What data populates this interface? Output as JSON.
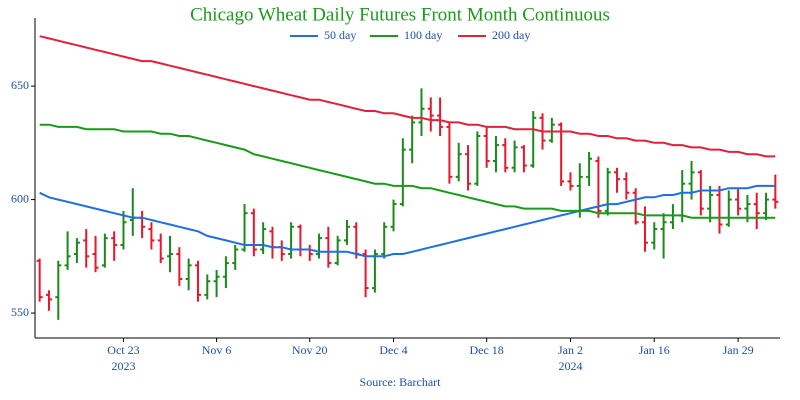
{
  "chart_data": {
    "type": "ohlc",
    "title": "Chicago Wheat Daily Futures Front Month Continuous",
    "source": "Source: Barchart",
    "categories": [
      null,
      null,
      null,
      null,
      null,
      null,
      null,
      null,
      null,
      "Oct 23",
      null,
      null,
      null,
      null,
      null,
      null,
      null,
      null,
      null,
      "Nov 6",
      null,
      null,
      null,
      null,
      null,
      null,
      null,
      null,
      null,
      "Nov 20",
      null,
      null,
      null,
      null,
      null,
      null,
      null,
      null,
      "Dec 4",
      null,
      null,
      null,
      null,
      null,
      null,
      null,
      null,
      null,
      "Dec 18",
      null,
      null,
      null,
      null,
      null,
      null,
      null,
      null,
      "Jan 2",
      null,
      null,
      null,
      null,
      null,
      null,
      null,
      null,
      "Jan 16",
      null,
      null,
      null,
      null,
      null,
      null,
      null,
      null,
      "Jan 29",
      null,
      null,
      null,
      null
    ],
    "category_years": [
      null,
      null,
      null,
      null,
      null,
      null,
      null,
      null,
      null,
      "2023",
      null,
      null,
      null,
      null,
      null,
      null,
      null,
      null,
      null,
      null,
      null,
      null,
      null,
      null,
      null,
      null,
      null,
      null,
      null,
      null,
      null,
      null,
      null,
      null,
      null,
      null,
      null,
      null,
      null,
      null,
      null,
      null,
      null,
      null,
      null,
      null,
      null,
      null,
      null,
      null,
      null,
      null,
      null,
      null,
      null,
      null,
      null,
      "2024",
      null,
      null,
      null,
      null,
      null,
      null,
      null,
      null,
      null,
      null,
      null,
      null,
      null,
      null,
      null,
      null,
      null,
      null,
      null,
      null,
      null,
      null
    ],
    "open": [
      573,
      558,
      557,
      571,
      576,
      582,
      576,
      571,
      583,
      580,
      591,
      592,
      587,
      582,
      575,
      576,
      565,
      571,
      558,
      564,
      566,
      572,
      578,
      594,
      578,
      586,
      579,
      576,
      588,
      578,
      576,
      583,
      572,
      582,
      588,
      576,
      561,
      576,
      588,
      598,
      622,
      634,
      640,
      637,
      632,
      610,
      620,
      607,
      628,
      617,
      624,
      614,
      623,
      615,
      636,
      626,
      633,
      608,
      606,
      610,
      617,
      595,
      612,
      609,
      603,
      590,
      581,
      587,
      590,
      593,
      607,
      612,
      596,
      602,
      589,
      600,
      596,
      598,
      594,
      600
    ],
    "high": [
      574,
      560,
      573,
      586,
      583,
      587,
      584,
      585,
      586,
      595,
      605,
      595,
      590,
      585,
      584,
      579,
      574,
      573,
      567,
      569,
      575,
      580,
      598,
      596,
      590,
      588,
      582,
      590,
      589,
      580,
      585,
      588,
      584,
      591,
      590,
      578,
      578,
      590,
      600,
      627,
      637,
      649,
      645,
      645,
      634,
      625,
      624,
      630,
      632,
      628,
      627,
      626,
      624,
      639,
      638,
      636,
      634,
      612,
      616,
      621,
      619,
      614,
      614,
      612,
      605,
      597,
      590,
      594,
      598,
      613,
      617,
      613,
      606,
      606,
      604,
      605,
      602,
      603,
      603,
      611
    ],
    "low": [
      555,
      551,
      547,
      569,
      572,
      570,
      568,
      570,
      573,
      578,
      584,
      583,
      578,
      572,
      568,
      562,
      560,
      555,
      556,
      557,
      561,
      569,
      577,
      575,
      576,
      574,
      573,
      574,
      575,
      573,
      574,
      570,
      571,
      580,
      574,
      557,
      559,
      574,
      586,
      597,
      616,
      628,
      630,
      628,
      607,
      608,
      604,
      606,
      614,
      612,
      612,
      612,
      612,
      614,
      622,
      625,
      606,
      604,
      592,
      606,
      592,
      593,
      603,
      600,
      589,
      577,
      578,
      574,
      587,
      590,
      600,
      593,
      590,
      585,
      588,
      593,
      590,
      587,
      591,
      596
    ],
    "close": [
      557,
      556,
      571,
      575,
      581,
      575,
      570,
      583,
      580,
      590,
      592,
      588,
      582,
      574,
      576,
      565,
      571,
      558,
      564,
      566,
      572,
      578,
      594,
      578,
      587,
      579,
      576,
      588,
      578,
      576,
      583,
      572,
      582,
      588,
      576,
      561,
      576,
      588,
      598,
      622,
      634,
      640,
      637,
      632,
      610,
      620,
      607,
      628,
      617,
      624,
      614,
      623,
      615,
      636,
      626,
      633,
      608,
      606,
      610,
      618,
      595,
      612,
      609,
      603,
      590,
      581,
      587,
      590,
      593,
      607,
      612,
      596,
      602,
      589,
      600,
      596,
      598,
      594,
      600,
      599
    ],
    "up_color": "#1a8a1a",
    "down_color": "#e8172b",
    "series": [
      {
        "name": "50 day",
        "color": "#1f6fe0",
        "values": [
          603,
          601,
          600,
          599,
          598,
          597,
          596,
          595,
          594,
          593,
          592,
          592,
          591,
          590,
          589,
          588,
          587,
          586,
          584,
          583,
          582,
          581,
          580,
          580,
          580,
          579,
          579,
          578,
          578,
          578,
          577,
          577,
          577,
          577,
          576,
          575,
          575,
          575,
          576,
          576,
          577,
          578,
          579,
          580,
          581,
          582,
          583,
          584,
          585,
          586,
          587,
          588,
          589,
          590,
          591,
          592,
          593,
          594,
          595,
          596,
          597,
          598,
          598,
          599,
          600,
          601,
          601,
          602,
          602,
          603,
          603,
          604,
          604,
          604,
          605,
          605,
          605,
          606,
          606,
          606
        ]
      },
      {
        "name": "100 day",
        "color": "#1a9a1a",
        "values": [
          633,
          633,
          632,
          632,
          632,
          631,
          631,
          631,
          631,
          630,
          630,
          630,
          630,
          629,
          629,
          628,
          628,
          627,
          626,
          625,
          624,
          623,
          622,
          620,
          619,
          618,
          617,
          616,
          615,
          614,
          613,
          612,
          611,
          610,
          609,
          608,
          607,
          607,
          606,
          606,
          606,
          605,
          605,
          604,
          603,
          602,
          601,
          600,
          599,
          598,
          597,
          597,
          596,
          596,
          596,
          596,
          595,
          595,
          595,
          595,
          594,
          594,
          594,
          594,
          594,
          593,
          593,
          593,
          593,
          593,
          592,
          592,
          592,
          592,
          592,
          592,
          592,
          592,
          592,
          592
        ]
      },
      {
        "name": "200 day",
        "color": "#e0213c",
        "values": [
          672,
          671,
          670,
          669,
          668,
          667,
          666,
          665,
          664,
          663,
          662,
          661,
          661,
          660,
          659,
          658,
          657,
          656,
          655,
          654,
          653,
          652,
          651,
          650,
          649,
          648,
          647,
          646,
          645,
          644,
          644,
          643,
          642,
          641,
          640,
          639,
          639,
          638,
          638,
          637,
          636,
          636,
          635,
          635,
          634,
          634,
          633,
          633,
          632,
          632,
          632,
          631,
          631,
          631,
          630,
          630,
          630,
          630,
          629,
          629,
          628,
          628,
          627,
          627,
          626,
          626,
          625,
          625,
          624,
          624,
          623,
          623,
          622,
          622,
          621,
          621,
          620,
          620,
          619,
          619
        ]
      }
    ],
    "ylim": [
      539,
      680
    ],
    "yticks": [
      550,
      600,
      650
    ]
  }
}
